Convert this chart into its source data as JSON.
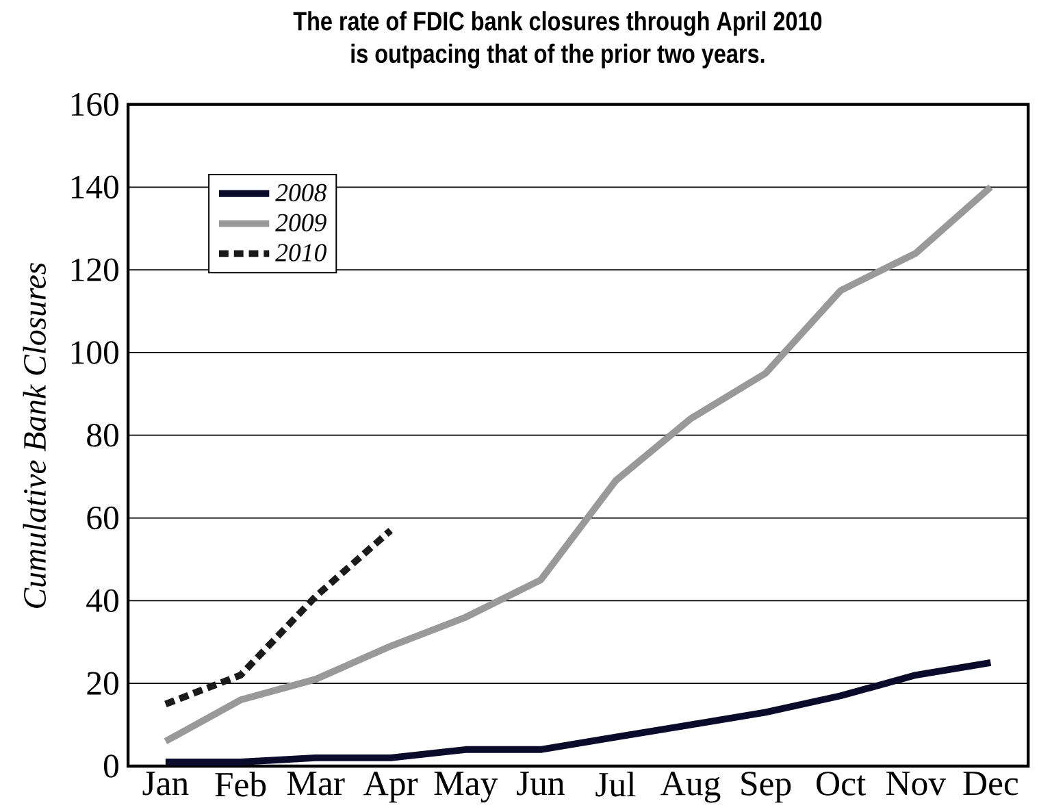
{
  "chart_data": {
    "type": "line",
    "title": "The rate of FDIC bank closures through April 2010 is outpacing that of the prior two years.",
    "ylabel": "Cumulative Bank Closures",
    "categories": [
      "Jan",
      "Feb",
      "Mar",
      "Apr",
      "May",
      "Jun",
      "Jul",
      "Aug",
      "Sep",
      "Oct",
      "Nov",
      "Dec"
    ],
    "series": [
      {
        "name": "2008",
        "color": "#0a0a2a",
        "values": [
          1,
          1,
          2,
          2,
          4,
          4,
          7,
          10,
          13,
          17,
          22,
          25
        ]
      },
      {
        "name": "2009",
        "color": "#999999",
        "values": [
          6,
          16,
          21,
          29,
          36,
          45,
          69,
          84,
          95,
          115,
          124,
          140
        ]
      },
      {
        "name": "2010",
        "color": "#1a1a1a",
        "line_style": "dashed",
        "values": [
          15,
          22,
          41,
          57,
          null,
          null,
          null,
          null,
          null,
          null,
          null,
          null
        ]
      }
    ],
    "ylim": [
      0,
      160
    ],
    "yticks": [
      0,
      20,
      40,
      60,
      80,
      100,
      120,
      140,
      160
    ],
    "grid": "y",
    "legend": "top left",
    "marker": "none",
    "line_style": "solid"
  }
}
